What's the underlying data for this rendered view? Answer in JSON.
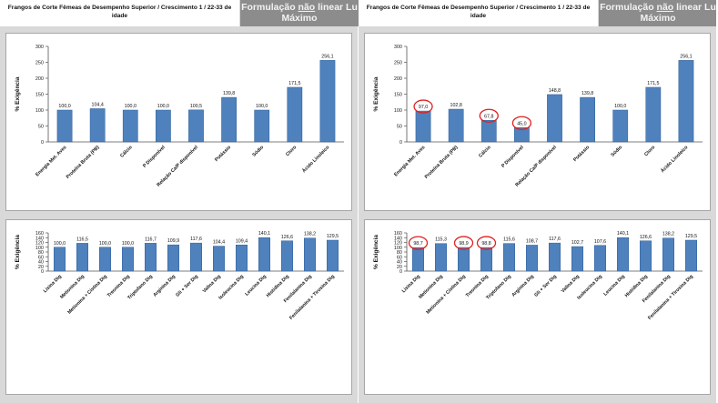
{
  "header": {
    "title": "Frangos de Corte Fêmeas de Desempenho Superior  / Crescimento 1 / 22-33 de idade",
    "badge_pre": "Formulação ",
    "badge_underlined": "não",
    "badge_post": " linear Lu",
    "badge_line2": "Máximo"
  },
  "colors": {
    "bar": "#4f81bd",
    "bar_edge": "#2f5f99",
    "highlight": "#e02020",
    "panel_bg": "#d9d9d9"
  },
  "chart_data": [
    {
      "type": "bar",
      "position": "top-left",
      "ylabel": "% Exigência",
      "ylim": [
        0,
        300
      ],
      "yticks": [
        0,
        50,
        100,
        150,
        200,
        250,
        300
      ],
      "grid": false,
      "categories": [
        "Energia Met. Aves",
        "Proteína Bruta (PB)",
        "Cálcio",
        "P Disponível",
        "Relação Ca/P disponível",
        "Potássio",
        "Sódio",
        "Cloro",
        "Ácido Linoleico"
      ],
      "values": [
        100.0,
        104.4,
        100.0,
        100.0,
        100.5,
        139.8,
        100.0,
        171.5,
        256.1
      ],
      "labels": [
        "100,0",
        "104,4",
        "100,0",
        "100,0",
        "100,5",
        "139,8",
        "100,0",
        "171,5",
        "256,1"
      ],
      "highlighted": []
    },
    {
      "type": "bar",
      "position": "top-right",
      "ylabel": "% Exigência",
      "ylim": [
        0,
        300
      ],
      "yticks": [
        0,
        50,
        100,
        150,
        200,
        250,
        300
      ],
      "grid": false,
      "categories": [
        "Energia Met. Aves",
        "Proteína Bruta (PB)",
        "Cálcio",
        "P Disponível",
        "Relação Ca/P disponível",
        "Potássio",
        "Sódio",
        "Cloro",
        "Ácido Linoleico"
      ],
      "values": [
        97.0,
        102.8,
        67.8,
        45.0,
        148.8,
        139.8,
        100.0,
        171.5,
        256.1
      ],
      "labels": [
        "97,0",
        "102,8",
        "67,8",
        "45,0",
        "148,8",
        "139,8",
        "100,0",
        "171,5",
        "256,1"
      ],
      "highlighted": [
        0,
        2,
        3
      ]
    },
    {
      "type": "bar",
      "position": "bottom-left",
      "ylabel": "% Exigência",
      "ylim": [
        0,
        160
      ],
      "yticks": [
        0,
        20,
        40,
        60,
        80,
        100,
        120,
        140,
        160
      ],
      "grid": false,
      "categories": [
        "Lisina Dig",
        "Metionina Dig",
        "Metionina + Cistina Dig",
        "Treonina Dig",
        "Triptofano Dig",
        "Arginina Dig",
        "Gli + Ser Dig",
        "Valina Dig",
        "Isoleucina Dig",
        "Leucina Dig",
        "Histidina Dig",
        "Fenilalanina Dig",
        "Fenilalanina + Tirosina Dig"
      ],
      "values": [
        100.0,
        116.5,
        100.0,
        100.0,
        116.7,
        109.9,
        117.6,
        104.4,
        109.4,
        140.1,
        126.6,
        138.2,
        129.5
      ],
      "labels": [
        "100,0",
        "116,5",
        "100,0",
        "100,0",
        "116,7",
        "109,9",
        "117,6",
        "104,4",
        "109,4",
        "140,1",
        "126,6",
        "138,2",
        "129,5"
      ],
      "highlighted": []
    },
    {
      "type": "bar",
      "position": "bottom-right",
      "ylabel": "% Exigência",
      "ylim": [
        0,
        160
      ],
      "yticks": [
        0,
        20,
        40,
        60,
        80,
        100,
        120,
        140,
        160
      ],
      "grid": false,
      "categories": [
        "Lisina Dig",
        "Metionina Dig",
        "Metionina + Cistina Dig",
        "Treonina Dig",
        "Triptofano Dig",
        "Arginina Dig",
        "Gli + Ser Dig",
        "Valina Dig",
        "Isoleucina Dig",
        "Leucina Dig",
        "Histidina Dig",
        "Fenilalanina Dig",
        "Fenilalanina + Tirosina Dig"
      ],
      "values": [
        98.7,
        115.3,
        98.9,
        98.8,
        115.6,
        108.7,
        117.6,
        102.7,
        107.6,
        140.1,
        126.6,
        138.2,
        129.5
      ],
      "labels": [
        "98,7",
        "115,3",
        "98,9",
        "98,8",
        "115,6",
        "108,7",
        "117,6",
        "102,7",
        "107,6",
        "140,1",
        "126,6",
        "138,2",
        "129,5"
      ],
      "highlighted": [
        0,
        2,
        3
      ]
    }
  ]
}
